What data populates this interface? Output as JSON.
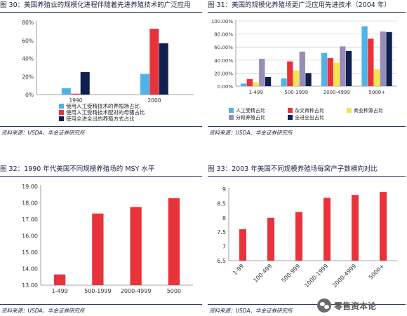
{
  "panels": [
    {
      "title": "图 30：美国养殖业的规模化进程伴随着先进养殖技术的广泛应用",
      "source": "资料来源：USDA、华金证券研究所"
    },
    {
      "title": "图 31：美国的规模化养殖场更广泛应用先进技术（2004 年）",
      "source": "资料来源：USDA、华金证券研究所"
    },
    {
      "title": "图 32：1990 年代美国不同规模养殖场的 MSY 水平",
      "source": "资料来源：USDA、华金证券研究所"
    },
    {
      "title": "图 33：2003 年美国不同规模养殖场每窝产子数横向对比",
      "source": "资料来源：USDA、华金证券研究所"
    }
  ],
  "watermark": {
    "text": "零售资本论",
    "icon": "wechat-icon"
  },
  "chart_data": [
    {
      "type": "bar",
      "title": "",
      "categories": [
        "1990",
        "2000"
      ],
      "series": [
        {
          "name": "使用人工受精技术的养殖场占比",
          "color": "#4db3e8",
          "values": [
            7,
            23
          ]
        },
        {
          "name": "使用人工受精技术配对的母猪占比",
          "color": "#e8333a",
          "values": [
            1,
            73
          ]
        },
        {
          "name": "使用全进全出的养殖方式占比",
          "color": "#0f2050",
          "values": [
            25,
            57
          ]
        }
      ],
      "yticks": [
        "0%",
        "20%",
        "40%",
        "60%",
        "80%"
      ],
      "ylim": [
        0,
        80
      ],
      "legend": "bottom",
      "grid": false
    },
    {
      "type": "bar",
      "title": "",
      "categories": [
        "1-499",
        "500-1999",
        "2000-4999",
        "5000+"
      ],
      "series": [
        {
          "name": "人工受精占比",
          "color": "#4db3e8",
          "values": [
            4,
            12,
            51,
            92
          ]
        },
        {
          "name": "杂交育种占比",
          "color": "#e8333a",
          "values": [
            11,
            38,
            43,
            73
          ]
        },
        {
          "name": "商业种源占比",
          "color": "#f5e44a",
          "values": [
            6,
            24,
            36,
            26
          ]
        },
        {
          "name": "分段养殖占比",
          "color": "#9a8cb8",
          "values": [
            42,
            53,
            61,
            84
          ]
        },
        {
          "name": "全进全出占比",
          "color": "#0f2050",
          "values": [
            14,
            20,
            54,
            83
          ]
        }
      ],
      "yticks": [
        "0.00%",
        "20.00%",
        "40.00%",
        "60.00%",
        "80.00%",
        "100.00%"
      ],
      "ylim": [
        0,
        100
      ],
      "legend": "bottom",
      "grid": true
    },
    {
      "type": "bar",
      "title": "",
      "categories": [
        "1-499",
        "500-1999",
        "2000-4999",
        "5000"
      ],
      "series": [
        {
          "color": "#e8333a",
          "values": [
            13.65,
            17.35,
            17.75,
            18.28
          ]
        }
      ],
      "yticks": [
        "13.00",
        "14.00",
        "15.00",
        "16.00",
        "17.00",
        "18.00",
        "19.00"
      ],
      "ylim": [
        13,
        19
      ],
      "legend": "none",
      "grid": false
    },
    {
      "type": "bar",
      "title": "",
      "categories": [
        "1-99",
        "100-499",
        "500-999",
        "1000-1999",
        "2000-4999",
        "5000+"
      ],
      "series": [
        {
          "color": "#e8333a",
          "values": [
            7.6,
            8.0,
            8.2,
            8.7,
            8.8,
            8.9
          ]
        }
      ],
      "yticks": [
        "6.5",
        "7",
        "7.5",
        "8",
        "8.5",
        "9"
      ],
      "ylim": [
        6.5,
        9
      ],
      "legend": "none",
      "grid": false
    }
  ]
}
